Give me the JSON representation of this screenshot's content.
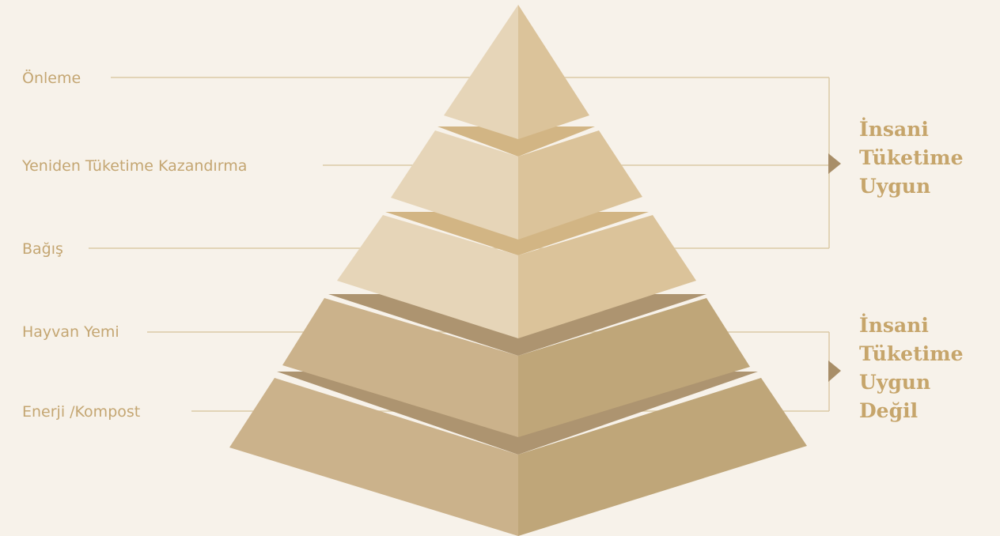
{
  "levels": [
    {
      "label": "Önleme"
    },
    {
      "label": "Yeniden Tüketime Kazandırma"
    },
    {
      "label": "Bağış"
    },
    {
      "label": "Hayvan Yemi"
    },
    {
      "label": "Enerji /Kompost"
    }
  ],
  "groups": [
    {
      "lines": [
        "İnsani",
        "Tüketime",
        "Uygun"
      ]
    },
    {
      "lines": [
        "İnsani",
        "Tüketime",
        "Uygun",
        "Değil"
      ]
    }
  ],
  "colors": {
    "background": "#f7f2ea",
    "label_text": "#c4a672",
    "group_text": "#c6a56b",
    "connector_line": "#dcc9a6",
    "arrow": "#a88e68",
    "tier_light_left": "#e6d5b8",
    "tier_light_right": "#dbc39a",
    "tier_light_ledge": "#d2b584",
    "tier_dark_left": "#cbb28b",
    "tier_dark_right": "#bfa679",
    "tier_dark_ledge": "#ad9470"
  }
}
